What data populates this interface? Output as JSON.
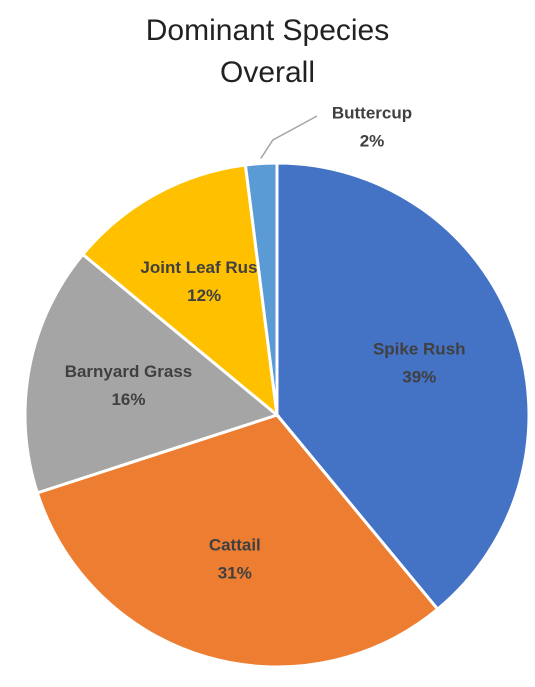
{
  "chart_data": {
    "type": "pie",
    "title": "Dominant Species Overall",
    "categories": [
      "Spike Rush",
      "Cattail",
      "Barnyard Grass",
      "Joint Leaf Rush",
      "Buttercup"
    ],
    "values": [
      39,
      31,
      16,
      12,
      2
    ],
    "value_labels": [
      "39%",
      "31%",
      "16%",
      "12%",
      "2%"
    ],
    "colors": [
      "#4472c4",
      "#ed7d31",
      "#a5a5a5",
      "#ffc000",
      "#5b9bd5"
    ]
  }
}
